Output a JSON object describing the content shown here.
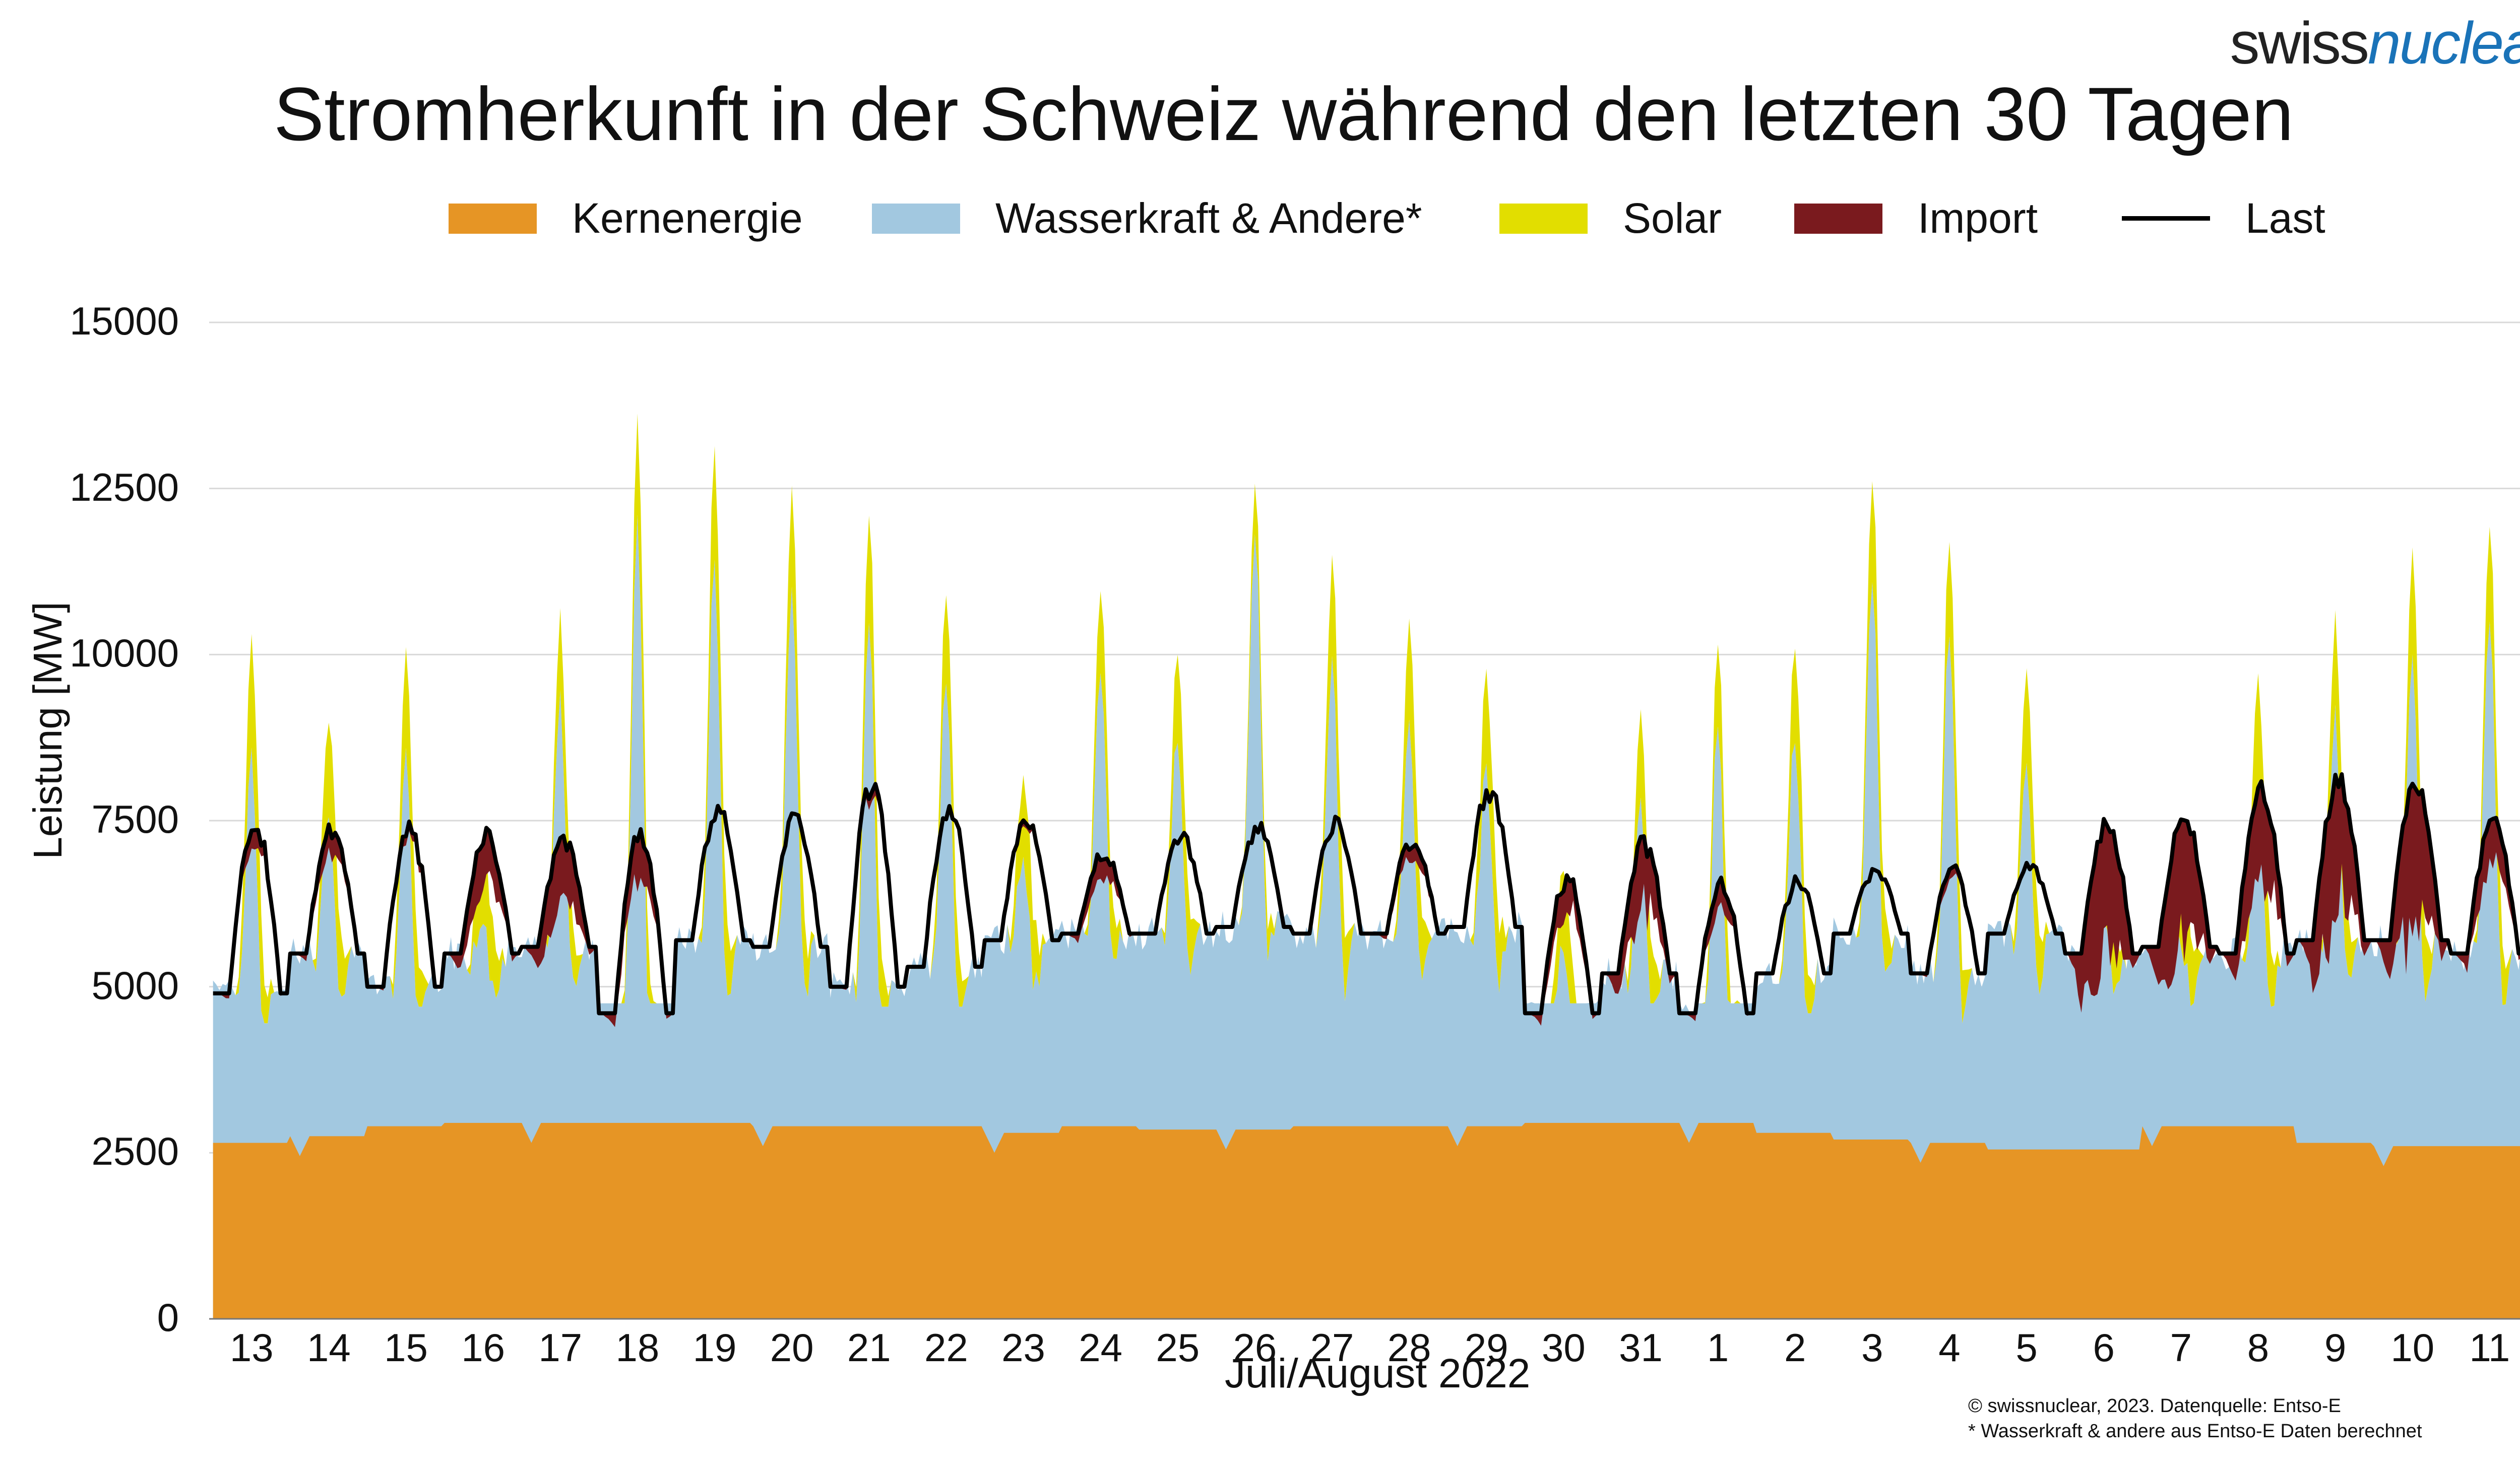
{
  "logo": {
    "part1": "swiss",
    "part2": "nuclear"
  },
  "title": "Stromherkunft in der Schweiz während den letzten 30 Tagen",
  "colors": {
    "kern": "#E69525",
    "wasser": "#A2C8E0",
    "solar": "#E2DE00",
    "import": "#7A1A1E",
    "last": "#000000"
  },
  "chart_data": {
    "type": "area",
    "title": "Stromherkunft in der Schweiz während den letzten 30 Tagen",
    "xlabel": "Juli/August 2022",
    "ylabel": "Leistung [MW]",
    "ylim": [
      0,
      15000
    ],
    "yticks": [
      "0",
      "2500",
      "5000",
      "7500",
      "10000",
      "12500",
      "15000"
    ],
    "x_day_labels": [
      "13",
      "14",
      "15",
      "16",
      "17",
      "18",
      "19",
      "20",
      "21",
      "22",
      "23",
      "24",
      "25",
      "26",
      "27",
      "28",
      "29",
      "30",
      "31",
      "1",
      "2",
      "3",
      "4",
      "5",
      "6",
      "7",
      "8",
      "9",
      "10",
      "11"
    ],
    "grid": true,
    "legend_position": "top",
    "legend": [
      "Kernenergie",
      "Wasserkraft & Andere*",
      "Solar",
      "Import",
      "Last"
    ],
    "series_daily": {
      "x": [
        "13",
        "14",
        "15",
        "16",
        "17",
        "18",
        "19",
        "20",
        "21",
        "22",
        "23",
        "24",
        "25",
        "26",
        "27",
        "28",
        "29",
        "30",
        "31",
        "1",
        "2",
        "3",
        "4",
        "5",
        "6",
        "7",
        "8",
        "9",
        "10",
        "11"
      ],
      "Kernenergie": [
        2650,
        2750,
        2900,
        2950,
        2950,
        2950,
        2950,
        2900,
        2900,
        2900,
        2800,
        2900,
        2850,
        2850,
        2900,
        2900,
        2900,
        2950,
        2950,
        2950,
        2800,
        2700,
        2650,
        2550,
        2550,
        2900,
        2900,
        2650,
        2600,
        2600
      ],
      "Wasserkraft_peak": [
        11000,
        9500,
        10500,
        7500,
        11000,
        14600,
        13800,
        13200,
        13000,
        11500,
        8500,
        11800,
        10600,
        13500,
        12000,
        10800,
        10000,
        7000,
        9500,
        10700,
        10800,
        13400,
        12500,
        10000,
        7500,
        7200,
        10100,
        11000,
        12100,
        12700
      ],
      "Solar_peak": [
        1800,
        1500,
        1600,
        1200,
        1300,
        1600,
        1800,
        1600,
        1700,
        1400,
        1300,
        1300,
        1400,
        800,
        1600,
        1600,
        1500,
        1300,
        1400,
        1300,
        1500,
        1600,
        1500,
        1500,
        1200,
        1300,
        1700,
        1500,
        1700,
        1500
      ],
      "Import_peak": [
        300,
        400,
        200,
        900,
        1200,
        800,
        0,
        0,
        200,
        0,
        100,
        400,
        0,
        0,
        0,
        300,
        0,
        600,
        1200,
        400,
        0,
        0,
        200,
        0,
        2500,
        2300,
        1700,
        2400,
        2600,
        800
      ],
      "Last_peak": [
        7700,
        7500,
        7600,
        7400,
        7300,
        7600,
        7800,
        7700,
        8300,
        7900,
        7600,
        7100,
        7400,
        7500,
        7600,
        7300,
        8100,
        6800,
        7300,
        6700,
        6700,
        6800,
        6900,
        6900,
        7600,
        7700,
        8100,
        8300,
        8300,
        7600
      ],
      "Last_min": [
        4900,
        5500,
        5000,
        5500,
        5600,
        4600,
        5700,
        5600,
        5000,
        5300,
        5700,
        5800,
        5800,
        5900,
        5800,
        5800,
        5900,
        4600,
        5200,
        4600,
        5200,
        5800,
        5200,
        5800,
        5500,
        5600,
        5500,
        5700,
        5700,
        5500
      ]
    }
  },
  "footer": {
    "source": "© swissnuclear, 2023. Datenquelle: Entso-E",
    "note": "* Wasserkraft & andere aus Entso-E Daten berechnet"
  }
}
